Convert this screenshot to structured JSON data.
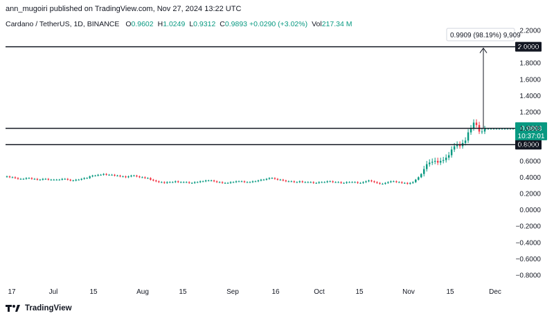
{
  "header": {
    "published_line": "ann_mugoiri published on TradingView.com, Nov 27, 2024 13:22 UTC",
    "symbol": "Cardano / TetherUS, 1D, BINANCE",
    "ohlc": [
      {
        "key": "O",
        "value": "0.9602"
      },
      {
        "key": "H",
        "value": "1.0249"
      },
      {
        "key": "L",
        "value": "0.9312"
      },
      {
        "key": "C",
        "value": "0.9893"
      },
      {
        "key": "",
        "value": "+0.0290 (+3.02%)"
      },
      {
        "key": "Vol",
        "value": "217.34 M"
      }
    ]
  },
  "price_axis": {
    "labels": [
      "2.2000",
      "2.0000",
      "1.8000",
      "1.6000",
      "1.4000",
      "1.2000",
      "1.0000",
      "0.8000",
      "0.6000",
      "0.4000",
      "0.2000",
      "0.0000",
      "−0.2000",
      "−0.4000",
      "−0.6000",
      "−0.8000"
    ]
  },
  "time_axis": {
    "labels": [
      "17",
      "Jul",
      "15",
      "Aug",
      "15",
      "Sep",
      "16",
      "Oct",
      "15",
      "Nov",
      "15",
      "Dec"
    ]
  },
  "levels": {
    "upper": "2.0000",
    "middle": "1.0000",
    "lower": "0.8000"
  },
  "current_price": {
    "price": "0.9893",
    "countdown": "10:37:01"
  },
  "measure_label": "0.9909 (98.19%) 9,909",
  "footer": {
    "brand": "TradingView"
  },
  "colors": {
    "up": "#089981",
    "down": "#f23645",
    "badge_dark": "#131722",
    "current_badge": "#089981"
  },
  "chart_data": {
    "type": "candlestick",
    "ylim": [
      -0.8,
      2.2
    ],
    "x_ticks": [
      "17",
      "Jul",
      "15",
      "Aug",
      "15",
      "Sep",
      "16",
      "Oct",
      "15",
      "Nov",
      "15",
      "Dec"
    ],
    "horizontal_levels": [
      2.0,
      1.0,
      0.8
    ],
    "last_close": 0.9893,
    "closes": [
      0.41,
      0.4,
      0.4,
      0.39,
      0.38,
      0.38,
      0.38,
      0.39,
      0.39,
      0.38,
      0.38,
      0.37,
      0.37,
      0.38,
      0.38,
      0.37,
      0.37,
      0.37,
      0.37,
      0.37,
      0.38,
      0.38,
      0.37,
      0.36,
      0.36,
      0.37,
      0.37,
      0.38,
      0.39,
      0.39,
      0.41,
      0.42,
      0.42,
      0.43,
      0.43,
      0.44,
      0.43,
      0.43,
      0.43,
      0.42,
      0.42,
      0.41,
      0.41,
      0.4,
      0.41,
      0.42,
      0.42,
      0.41,
      0.4,
      0.4,
      0.39,
      0.39,
      0.37,
      0.36,
      0.35,
      0.34,
      0.34,
      0.33,
      0.34,
      0.34,
      0.34,
      0.35,
      0.34,
      0.34,
      0.34,
      0.34,
      0.33,
      0.33,
      0.34,
      0.34,
      0.35,
      0.35,
      0.36,
      0.36,
      0.36,
      0.35,
      0.34,
      0.34,
      0.33,
      0.33,
      0.33,
      0.34,
      0.34,
      0.35,
      0.35,
      0.35,
      0.34,
      0.34,
      0.34,
      0.35,
      0.35,
      0.36,
      0.37,
      0.37,
      0.38,
      0.39,
      0.39,
      0.38,
      0.37,
      0.37,
      0.36,
      0.35,
      0.35,
      0.35,
      0.34,
      0.34,
      0.35,
      0.34,
      0.34,
      0.34,
      0.34,
      0.33,
      0.33,
      0.34,
      0.34,
      0.34,
      0.35,
      0.35,
      0.34,
      0.34,
      0.34,
      0.33,
      0.33,
      0.34,
      0.34,
      0.34,
      0.34,
      0.33,
      0.33,
      0.34,
      0.35,
      0.36,
      0.35,
      0.34,
      0.33,
      0.32,
      0.32,
      0.33,
      0.34,
      0.35,
      0.35,
      0.34,
      0.34,
      0.33,
      0.33,
      0.32,
      0.33,
      0.34,
      0.37,
      0.4,
      0.44,
      0.5,
      0.56,
      0.58,
      0.59,
      0.6,
      0.58,
      0.6,
      0.61,
      0.64,
      0.67,
      0.74,
      0.78,
      0.8,
      0.78,
      0.82,
      0.85,
      0.95,
      1.0,
      1.07,
      1.04,
      0.96,
      0.96,
      0.99
    ]
  }
}
